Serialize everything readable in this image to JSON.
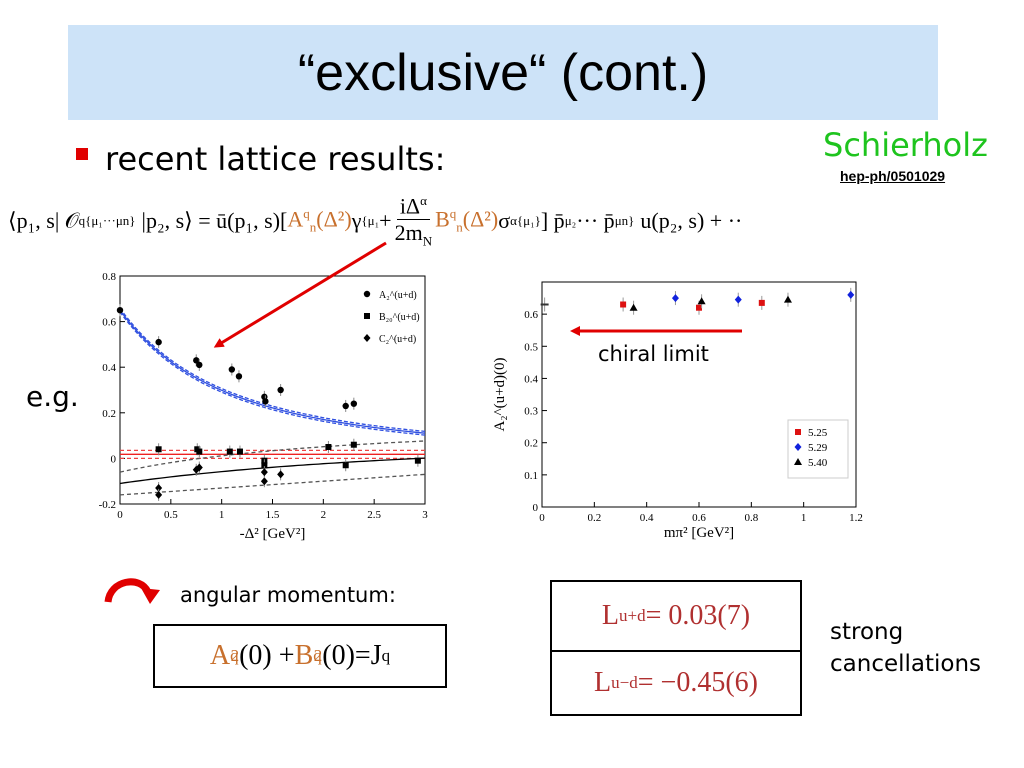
{
  "title": "“exclusive“ (cont.)",
  "bullet": "recent lattice results:",
  "author": "Schierholz",
  "reference": "hep-ph/0501029",
  "formula": {
    "lhs": "⟨p₁, s| 𝒪",
    "lhs_sup": "q",
    "lhs_sub": "{μ₁···μn}",
    "lhs_tail": "|p₂, s⟩ = ū(p₁, s)[",
    "A_term": "A",
    "A_sup": "q",
    "A_sub": "n",
    "A_arg": "(Δ²)",
    "gamma": "γ",
    "gamma_sub": "{μ₁",
    "plus": "+",
    "frac_num": "iΔ",
    "frac_num_sup": "α",
    "frac_den": "2m",
    "frac_den_sub": "N",
    "B_term": "B",
    "B_sup": "q",
    "B_sub": "n",
    "B_arg": "(Δ²)",
    "sigma": "σ",
    "sigma_sub": "α{μ₁}",
    "tail": "] p̄",
    "tail_sub1": "μ₂",
    "tail_mid": "··· p̄",
    "tail_sub2": "μn}",
    "tail_end": "u(p₂, s) + ··"
  },
  "eg_label": "e.g.",
  "chiral_label": "chiral limit",
  "angmom_label": "angular momentum:",
  "j_box": {
    "a": "A",
    "a_sup": "q",
    "a_sub": "2",
    "a_arg": "(0) + ",
    "b": "B",
    "b_sup": "q",
    "b_sub": "2",
    "b_arg": "(0)",
    "eq": " = ",
    "j": "J",
    "j_sup": "q"
  },
  "l_plus": {
    "l": "L",
    "sup": "u+d",
    "val": " = 0.03(7)"
  },
  "l_minus": {
    "l": "L",
    "sup": "u−d",
    "val": " = −0.45(6)"
  },
  "strong_line1": "strong",
  "strong_line2": "cancellations",
  "colors": {
    "title_bg": "#cde3f8",
    "bullet": "#e00000",
    "author": "#1ec41e",
    "orange": "#c8702d",
    "red_text": "#b03030",
    "arrow": "#e00000"
  },
  "chart_data": [
    {
      "type": "scatter",
      "xlabel": "-Δ² [GeV²]",
      "ylabel": "",
      "xlim": [
        0,
        3
      ],
      "ylim": [
        -0.2,
        0.8
      ],
      "xticks": [
        "0",
        "0.5",
        "1",
        "1.5",
        "2",
        "2.5",
        "3"
      ],
      "yticks": [
        "-0.2",
        "0",
        "0.2",
        "0.4",
        "0.6",
        "0.8"
      ],
      "legend_position": "top-right",
      "series": [
        {
          "name": "A₂^(u+d)",
          "marker": "circle",
          "x": [
            0,
            0.38,
            0.75,
            0.78,
            1.1,
            1.17,
            1.42,
            1.43,
            1.58,
            2.22,
            2.3
          ],
          "y": [
            0.65,
            0.51,
            0.43,
            0.41,
            0.39,
            0.36,
            0.27,
            0.25,
            0.3,
            0.23,
            0.24
          ]
        },
        {
          "name": "B₂₀^(u+d)",
          "marker": "square",
          "x": [
            0.38,
            0.76,
            0.78,
            1.08,
            1.18,
            1.42,
            1.42,
            2.05,
            2.22,
            2.3,
            2.93
          ],
          "y": [
            0.04,
            0.04,
            0.03,
            0.03,
            0.03,
            -0.01,
            -0.03,
            0.05,
            -0.03,
            0.06,
            -0.01
          ]
        },
        {
          "name": "C₂^(u+d)",
          "marker": "diamond",
          "x": [
            0.38,
            0.38,
            0.75,
            0.78,
            1.42,
            1.42,
            1.58
          ],
          "y": [
            -0.13,
            -0.16,
            -0.05,
            -0.04,
            -0.1,
            -0.06,
            -0.07
          ]
        }
      ]
    },
    {
      "type": "scatter",
      "xlabel": "mπ² [GeV²]",
      "ylabel": "A₂^(u+d)(0)",
      "xlim": [
        0,
        1.2
      ],
      "ylim": [
        0,
        0.7
      ],
      "xticks": [
        "0",
        "0.2",
        "0.4",
        "0.6",
        "0.8",
        "1",
        "1.2"
      ],
      "yticks": [
        "0",
        "0.1",
        "0.2",
        "0.3",
        "0.4",
        "0.5",
        "0.6"
      ],
      "legend_position": "bottom-right",
      "series": [
        {
          "name": "chiral",
          "marker": "dash",
          "x": [
            0.01
          ],
          "y": [
            0.63
          ]
        },
        {
          "name": "5.25",
          "marker": "square",
          "x": [
            0.31,
            0.6,
            0.84
          ],
          "y": [
            0.63,
            0.62,
            0.635
          ]
        },
        {
          "name": "5.29",
          "marker": "diamond",
          "x": [
            0.51,
            0.75,
            1.18
          ],
          "y": [
            0.65,
            0.645,
            0.66
          ]
        },
        {
          "name": "5.40",
          "marker": "triangle",
          "x": [
            0.35,
            0.61,
            0.94
          ],
          "y": [
            0.62,
            0.64,
            0.645
          ]
        }
      ]
    }
  ]
}
